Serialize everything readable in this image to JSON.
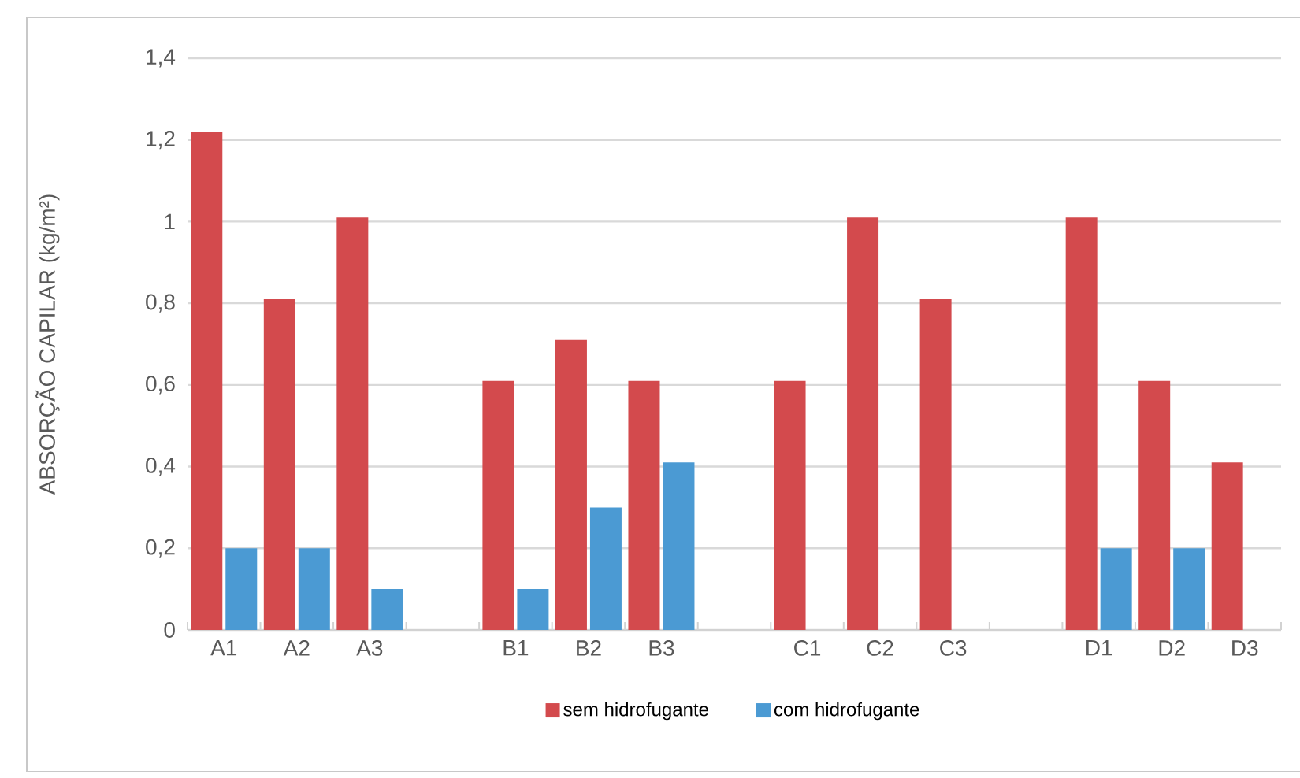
{
  "chart_data": {
    "type": "bar",
    "ylabel": "ABSORÇÃO CAPILAR (kg/m²)",
    "categories": [
      "A1",
      "A2",
      "A3",
      null,
      "B1",
      "B2",
      "B3",
      null,
      "C1",
      "C2",
      "C3",
      null,
      "D1",
      "D2",
      "D3"
    ],
    "series": [
      {
        "name": "sem hidrofugante",
        "color": "#d34a4d",
        "values": [
          1.22,
          0.81,
          1.01,
          null,
          0.61,
          0.71,
          0.61,
          null,
          0.61,
          1.01,
          0.81,
          null,
          1.01,
          0.61,
          0.41
        ]
      },
      {
        "name": "com hidrofugante",
        "color": "#4b9ad3",
        "values": [
          0.2,
          0.2,
          0.1,
          null,
          0.1,
          0.3,
          0.41,
          null,
          null,
          null,
          null,
          null,
          0.2,
          0.2,
          null
        ]
      }
    ],
    "ylim": [
      0,
      1.4
    ],
    "yticks": [
      0,
      {
        "value": 0.2,
        "label": "0,2"
      },
      {
        "value": 0.4,
        "label": "0,4"
      },
      {
        "value": 0.6,
        "label": "0,6"
      },
      {
        "value": 0.8,
        "label": "0,8"
      },
      1,
      {
        "value": 1.2,
        "label": "1,2"
      },
      {
        "value": 1.4,
        "label": "1,4"
      }
    ],
    "grid": "y",
    "legend": "bottom"
  }
}
